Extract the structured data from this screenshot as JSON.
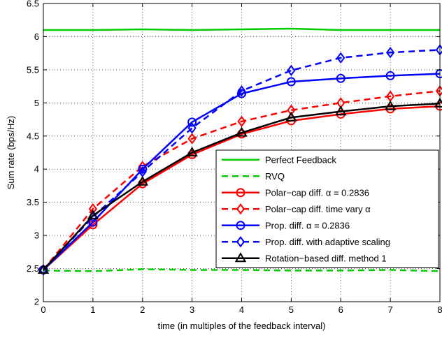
{
  "chart_data": {
    "type": "line",
    "title": "",
    "xlabel": "time (in multiples of the feedback interval)",
    "ylabel": "Sum rate (bps/Hz)",
    "xlim": [
      0,
      8
    ],
    "ylim": [
      2,
      6.5
    ],
    "x_ticks": [
      0,
      1,
      2,
      3,
      4,
      5,
      6,
      7,
      8
    ],
    "y_ticks": [
      2,
      2.5,
      3,
      3.5,
      4,
      4.5,
      5,
      5.5,
      6,
      6.5
    ],
    "grid": true,
    "legend_position": "center-right",
    "x": [
      0,
      1,
      2,
      3,
      4,
      5,
      6,
      7,
      8
    ],
    "series": [
      {
        "name": "Perfect Feedback",
        "color": "#00cc00",
        "dash": "solid",
        "marker": "none",
        "values": [
          6.1,
          6.1,
          6.11,
          6.1,
          6.11,
          6.12,
          6.1,
          6.1,
          6.1
        ]
      },
      {
        "name": "RVQ",
        "color": "#00cc00",
        "dash": "dashed",
        "marker": "none",
        "values": [
          2.47,
          2.46,
          2.49,
          2.48,
          2.48,
          2.47,
          2.47,
          2.48,
          2.46
        ]
      },
      {
        "name": "Polar−cap diff. α = 0.2836",
        "color": "#ff0000",
        "dash": "solid",
        "marker": "circle",
        "values": [
          2.48,
          3.16,
          3.78,
          4.22,
          4.53,
          4.73,
          4.83,
          4.91,
          4.95
        ]
      },
      {
        "name": "Polar−cap diff. time vary α",
        "color": "#ff0000",
        "dash": "dashed",
        "marker": "diamond",
        "values": [
          2.48,
          3.4,
          4.04,
          4.46,
          4.72,
          4.89,
          5.0,
          5.1,
          5.18
        ]
      },
      {
        "name": "Prop. diff. α = 0.2836",
        "color": "#0000ff",
        "dash": "solid",
        "marker": "circle",
        "values": [
          2.48,
          3.2,
          4.0,
          4.71,
          5.14,
          5.32,
          5.37,
          5.41,
          5.44
        ]
      },
      {
        "name": "Prop. diff. with adaptive scaling",
        "color": "#0000ff",
        "dash": "dashed",
        "marker": "diamond",
        "values": [
          2.48,
          3.28,
          3.96,
          4.62,
          5.18,
          5.49,
          5.68,
          5.76,
          5.8
        ]
      },
      {
        "name": "Rotation−based diff. method 1",
        "color": "#000000",
        "dash": "solid",
        "marker": "triangle",
        "values": [
          2.48,
          3.3,
          3.81,
          4.25,
          4.55,
          4.78,
          4.87,
          4.95,
          4.99
        ]
      }
    ]
  }
}
